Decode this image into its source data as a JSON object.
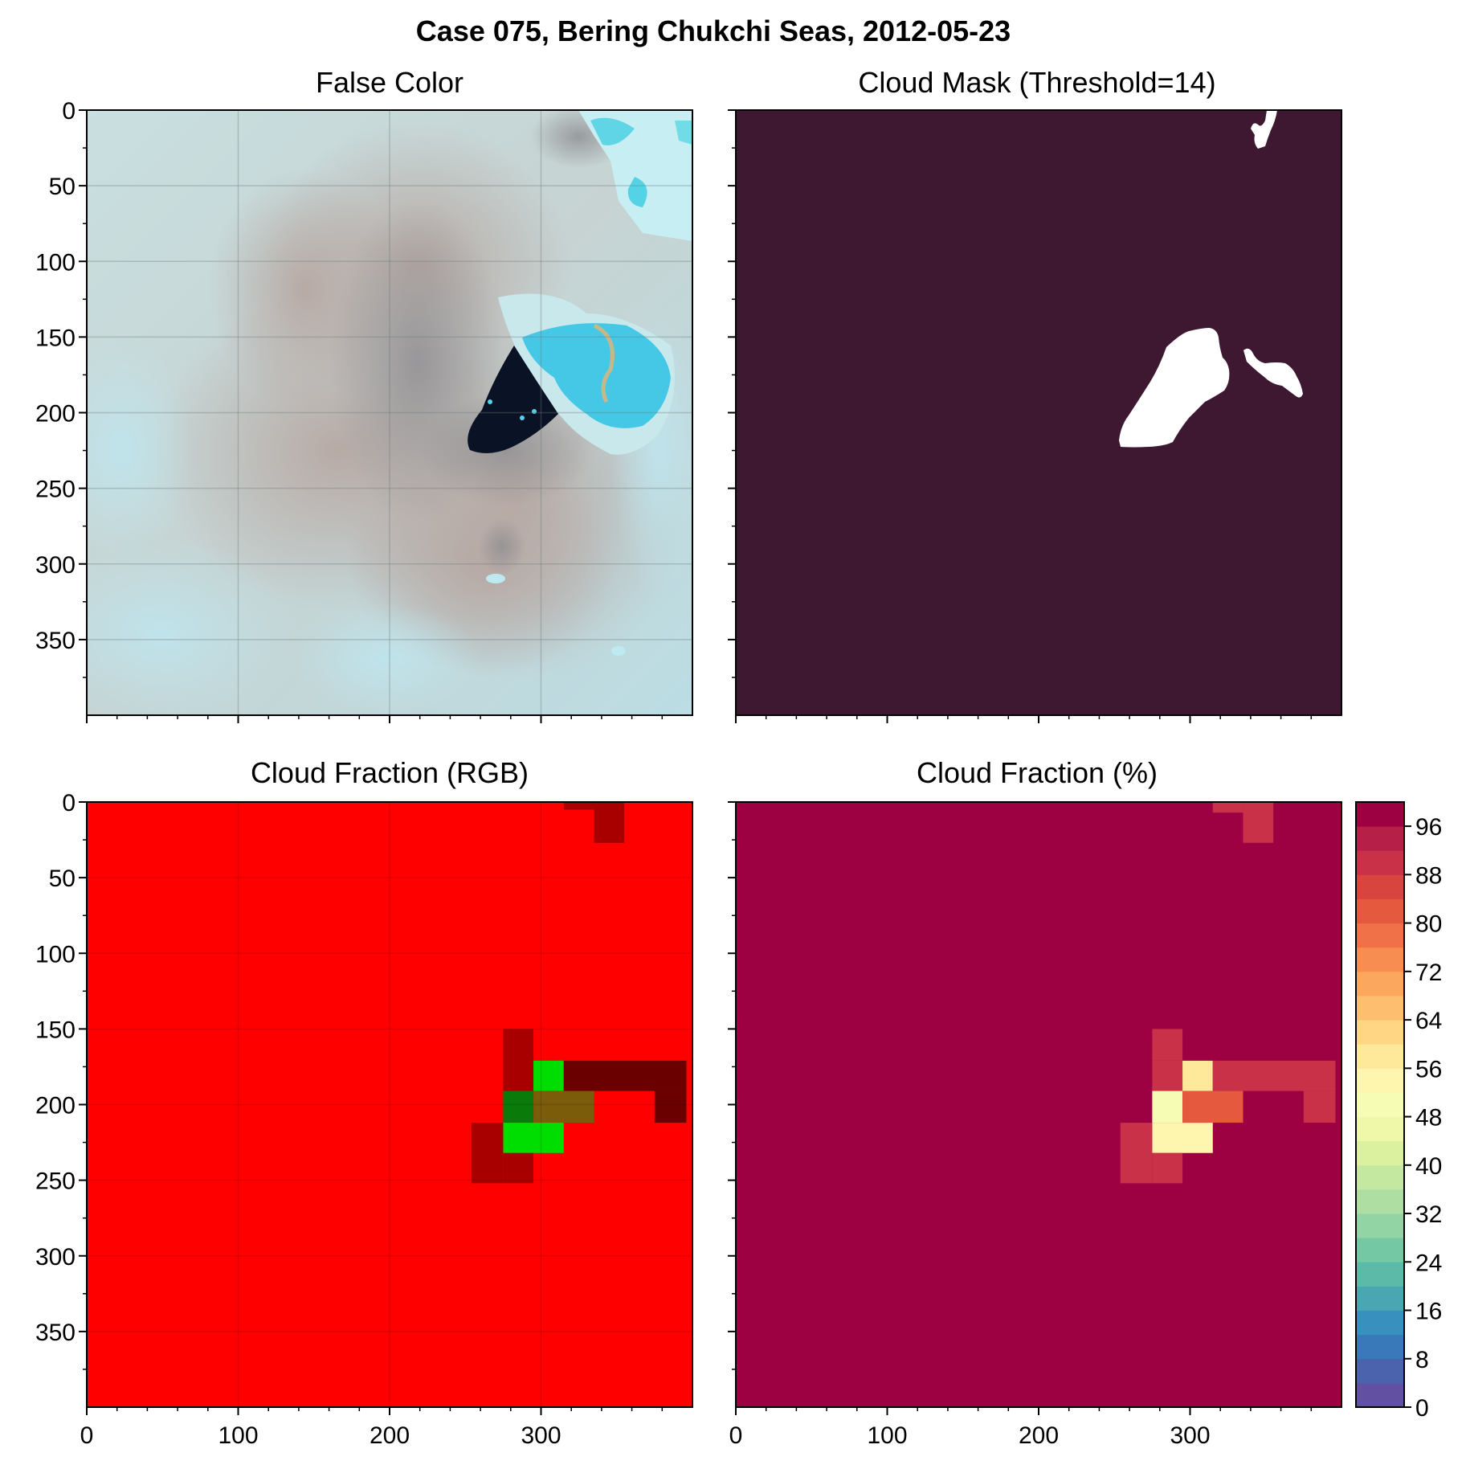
{
  "figure": {
    "title": "Case 075, Bering Chukchi Seas, 2012-05-23"
  },
  "colors": {
    "mask_background": "#3e1730",
    "mask_cloud": "#ffffff",
    "rgb_full_red": "#ff0000",
    "rgb_dark_red": "#a80000",
    "rgb_darker_red": "#6a0000",
    "rgb_green": "#00dd00",
    "rgb_dark_green": "#0a7a0a",
    "rgb_olive": "#7a5c0a",
    "pct_background": "#9e0142"
  },
  "chart_data": [
    {
      "type": "heatmap",
      "title": "False Color",
      "xlim": [
        0,
        400
      ],
      "ylim": [
        400,
        0
      ],
      "xticks": [],
      "yticks": [
        0,
        50,
        100,
        150,
        200,
        250,
        300,
        350
      ],
      "grid": true,
      "content": "satellite false-color image: pale cyan sea ice with brownish regions, a dark open-water lead near x=250-300, y=150-230 and bright cyan ice in the top-right"
    },
    {
      "type": "heatmap",
      "title": "Cloud Mask (Threshold=14)",
      "xlim": [
        0,
        400
      ],
      "ylim": [
        400,
        0
      ],
      "values_legend": {
        "0": "background",
        "1": "cloud"
      },
      "cloud_regions": [
        {
          "description": "large white patch",
          "x_range": [
            250,
            325
          ],
          "y_range": [
            145,
            222
          ]
        },
        {
          "description": "small patch right",
          "x_range": [
            334,
            375
          ],
          "y_range": [
            155,
            195
          ]
        },
        {
          "description": "small patch top",
          "x_range": [
            320,
            350
          ],
          "y_range": [
            0,
            28
          ]
        }
      ]
    },
    {
      "type": "heatmap",
      "title": "Cloud Fraction (RGB)",
      "xlim": [
        0,
        400
      ],
      "ylim": [
        400,
        0
      ],
      "xticks": [
        0,
        100,
        200,
        300
      ],
      "yticks": [
        0,
        50,
        100,
        150,
        200,
        250,
        300,
        350
      ],
      "background": "rgb_full_red",
      "cells": [
        {
          "x": [
            315,
            335
          ],
          "y": [
            0,
            5
          ],
          "color": "rgb_dark_red"
        },
        {
          "x": [
            335,
            355
          ],
          "y": [
            0,
            27
          ],
          "color": "rgb_dark_red"
        },
        {
          "x": [
            275,
            295
          ],
          "y": [
            150,
            191
          ],
          "color": "rgb_dark_red"
        },
        {
          "x": [
            295,
            315
          ],
          "y": [
            171,
            191
          ],
          "color": "rgb_green"
        },
        {
          "x": [
            315,
            396
          ],
          "y": [
            171,
            191
          ],
          "color": "rgb_darker_red"
        },
        {
          "x": [
            375,
            396
          ],
          "y": [
            191,
            212
          ],
          "color": "rgb_darker_red"
        },
        {
          "x": [
            275,
            295
          ],
          "y": [
            191,
            212
          ],
          "color": "rgb_dark_green"
        },
        {
          "x": [
            295,
            335
          ],
          "y": [
            191,
            212
          ],
          "color": "rgb_olive"
        },
        {
          "x": [
            275,
            315
          ],
          "y": [
            212,
            232
          ],
          "color": "rgb_green"
        },
        {
          "x": [
            254,
            275
          ],
          "y": [
            212,
            252
          ],
          "color": "rgb_dark_red"
        },
        {
          "x": [
            275,
            295
          ],
          "y": [
            232,
            252
          ],
          "color": "rgb_dark_red"
        }
      ]
    },
    {
      "type": "heatmap",
      "title": "Cloud Fraction (%)",
      "xlim": [
        0,
        400
      ],
      "ylim": [
        400,
        0
      ],
      "xticks": [
        0,
        100,
        200,
        300
      ],
      "background_value": 100,
      "cells": [
        {
          "x": [
            315,
            335
          ],
          "y": [
            0,
            7
          ],
          "value": 90
        },
        {
          "x": [
            335,
            355
          ],
          "y": [
            0,
            27
          ],
          "value": 90
        },
        {
          "x": [
            275,
            295
          ],
          "y": [
            150,
            171
          ],
          "value": 91
        },
        {
          "x": [
            275,
            295
          ],
          "y": [
            171,
            191
          ],
          "value": 91
        },
        {
          "x": [
            295,
            315
          ],
          "y": [
            171,
            191
          ],
          "value": 56
        },
        {
          "x": [
            315,
            396
          ],
          "y": [
            171,
            191
          ],
          "value": 88
        },
        {
          "x": [
            375,
            396
          ],
          "y": [
            191,
            212
          ],
          "value": 88
        },
        {
          "x": [
            275,
            295
          ],
          "y": [
            191,
            212
          ],
          "value": 50
        },
        {
          "x": [
            295,
            335
          ],
          "y": [
            191,
            212
          ],
          "value": 81
        },
        {
          "x": [
            275,
            315
          ],
          "y": [
            212,
            232
          ],
          "value": 54
        },
        {
          "x": [
            254,
            275
          ],
          "y": [
            212,
            252
          ],
          "value": 89
        },
        {
          "x": [
            275,
            295
          ],
          "y": [
            232,
            252
          ],
          "value": 89
        }
      ],
      "colorbar": {
        "min": 0,
        "max": 100,
        "step": 4,
        "ticks": [
          0,
          8,
          16,
          24,
          32,
          40,
          48,
          56,
          64,
          72,
          80,
          88,
          96
        ],
        "colors": [
          "#6251a3",
          "#4b63ad",
          "#3979b9",
          "#3890be",
          "#4aa6b3",
          "#5cbba8",
          "#74c8a4",
          "#93d4a4",
          "#aedea2",
          "#c5e8a0",
          "#dbf1a0",
          "#eef8a8",
          "#f7fcb5",
          "#fef6ae",
          "#fee89a",
          "#fed684",
          "#fdbf6f",
          "#fca75e",
          "#f88d52",
          "#f07148",
          "#e5593f",
          "#d8443e",
          "#c83147",
          "#b51f48",
          "#9e0142"
        ]
      }
    }
  ]
}
